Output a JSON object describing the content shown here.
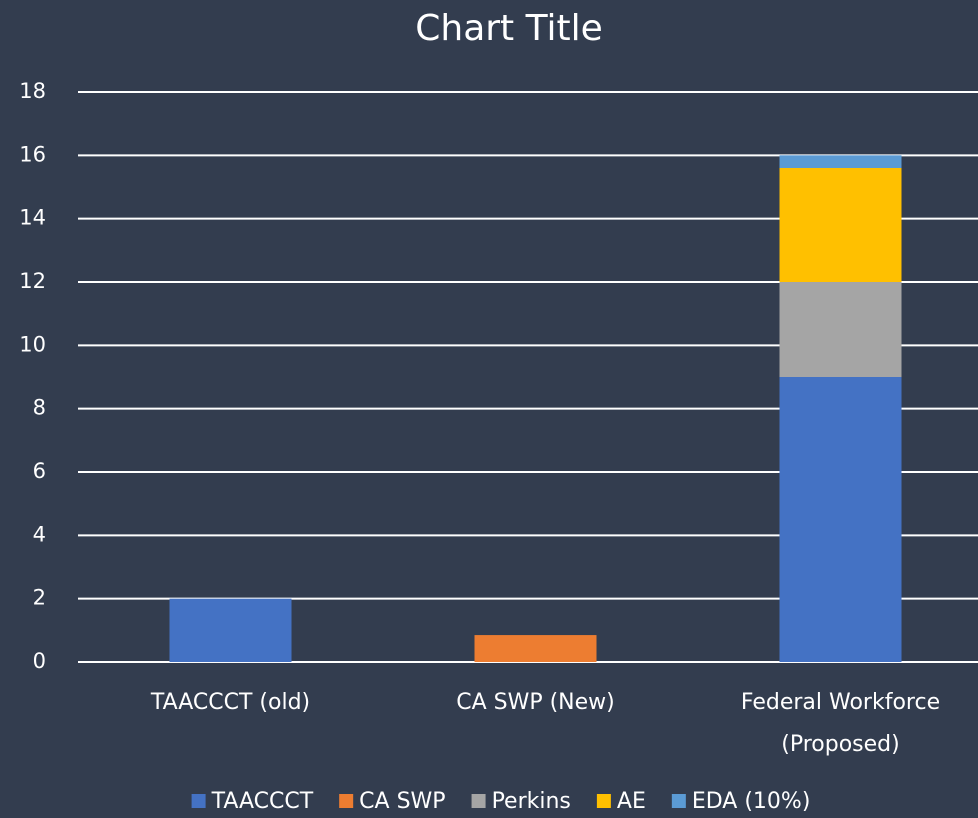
{
  "chart_data": {
    "type": "stacked_bar",
    "title": "Chart Title",
    "categories": [
      "TAACCCT (old)",
      "CA SWP (New)",
      "Federal Workforce (Proposed)"
    ],
    "series": [
      {
        "name": "TAACCCT",
        "color": "#4472c4",
        "values": [
          2,
          null,
          9
        ]
      },
      {
        "name": "CA SWP",
        "color": "#ed7d31",
        "values": [
          null,
          0.85,
          null
        ]
      },
      {
        "name": "Perkins",
        "color": "#a5a5a5",
        "values": [
          null,
          null,
          3
        ]
      },
      {
        "name": "AE",
        "color": "#ffc000",
        "values": [
          null,
          null,
          3.6
        ]
      },
      {
        "name": "EDA (10%)",
        "color": "#5b9bd5",
        "values": [
          null,
          null,
          0.4
        ]
      }
    ],
    "ylim": [
      0,
      18
    ],
    "yticks": [
      0,
      2,
      4,
      6,
      8,
      10,
      12,
      14,
      16,
      18
    ],
    "grid": true,
    "legend": "bottom"
  }
}
